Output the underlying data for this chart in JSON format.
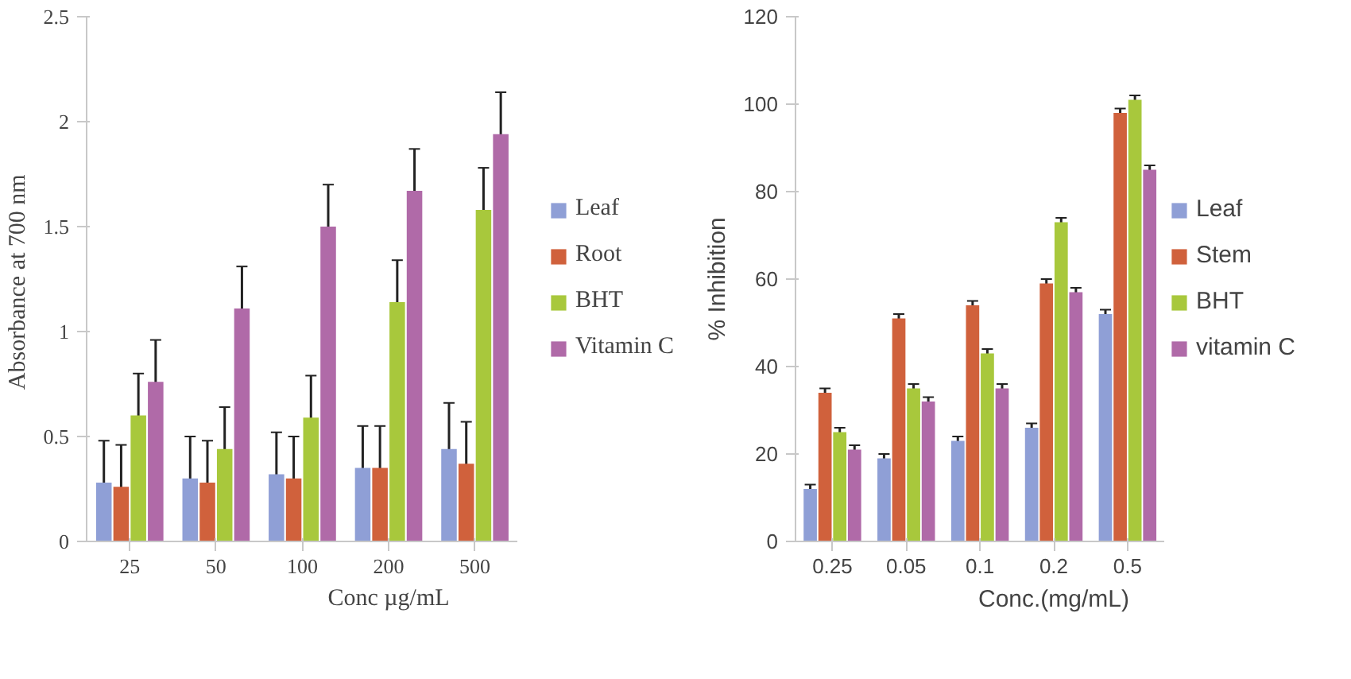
{
  "chart_data": [
    {
      "type": "bar",
      "xlabel": "Conc µg/mL",
      "ylabel": "Absorbance at 700  nm",
      "categories": [
        "25",
        "50",
        "100",
        "200",
        "500"
      ],
      "ylim": [
        0,
        2.5
      ],
      "yticks": [
        0,
        0.5,
        1,
        1.5,
        2,
        2.5
      ],
      "grid": false,
      "legend": "right",
      "series": [
        {
          "name": "Leaf",
          "color": "#8f9fd6",
          "values": [
            0.28,
            0.3,
            0.32,
            0.35,
            0.44
          ],
          "errors": [
            0.2,
            0.2,
            0.2,
            0.2,
            0.22
          ]
        },
        {
          "name": "Root",
          "color": "#d0613c",
          "values": [
            0.26,
            0.28,
            0.3,
            0.35,
            0.37
          ],
          "errors": [
            0.2,
            0.2,
            0.2,
            0.2,
            0.2
          ]
        },
        {
          "name": "BHT",
          "color": "#a8c83c",
          "values": [
            0.6,
            0.44,
            0.59,
            1.14,
            1.58
          ],
          "errors": [
            0.2,
            0.2,
            0.2,
            0.2,
            0.2
          ]
        },
        {
          "name": "Vitamin C",
          "color": "#b06aa8",
          "values": [
            0.76,
            1.11,
            1.5,
            1.67,
            1.94
          ],
          "errors": [
            0.2,
            0.2,
            0.2,
            0.2,
            0.2
          ]
        }
      ]
    },
    {
      "type": "bar",
      "xlabel": "Conc.(mg/mL)",
      "ylabel": "% Inhibition",
      "categories": [
        "0.25",
        "0.05",
        "0.1",
        "0.2",
        "0.5"
      ],
      "ylim": [
        0,
        120
      ],
      "yticks": [
        0,
        20,
        40,
        60,
        80,
        100,
        120
      ],
      "grid": false,
      "legend": "right",
      "series": [
        {
          "name": "Leaf",
          "color": "#8f9fd6",
          "values": [
            12,
            19,
            23,
            26,
            52
          ],
          "errors": [
            1,
            1,
            1,
            1,
            1
          ]
        },
        {
          "name": "Stem",
          "color": "#d0613c",
          "values": [
            34,
            51,
            54,
            59,
            98
          ],
          "errors": [
            1,
            1,
            1,
            1,
            1
          ]
        },
        {
          "name": "BHT",
          "color": "#a8c83c",
          "values": [
            25,
            35,
            43,
            73,
            101
          ],
          "errors": [
            1,
            1,
            1,
            1,
            1
          ]
        },
        {
          "name": "vitamin C",
          "color": "#b06aa8",
          "values": [
            21,
            32,
            35,
            57,
            85
          ],
          "errors": [
            1,
            1,
            1,
            1,
            1
          ]
        }
      ]
    }
  ]
}
